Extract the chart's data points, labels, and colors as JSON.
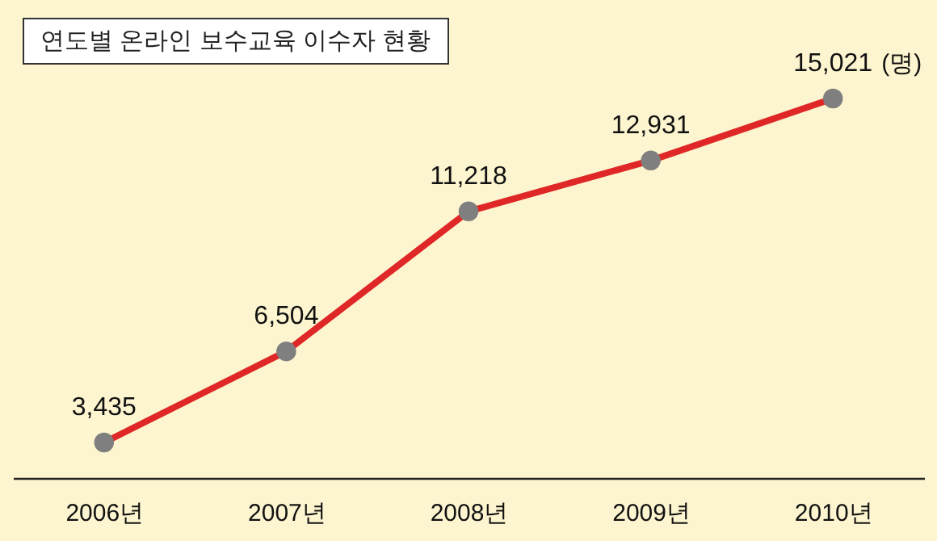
{
  "chart_data": {
    "type": "line",
    "title": "연도별 온라인 보수교육 이수자 현황",
    "categories": [
      "2006년",
      "2007년",
      "2008년",
      "2009년",
      "2010년"
    ],
    "series": [
      {
        "color": "#e02727",
        "values": [
          3435,
          6504,
          11218,
          12931,
          15021
        ],
        "value_labels": [
          "3,435",
          "6,504",
          "11,218",
          "12,931",
          "15,021"
        ]
      }
    ],
    "marker": "circle",
    "line_style": "solid",
    "grid": false,
    "annotations": [
      "(명)"
    ]
  }
}
